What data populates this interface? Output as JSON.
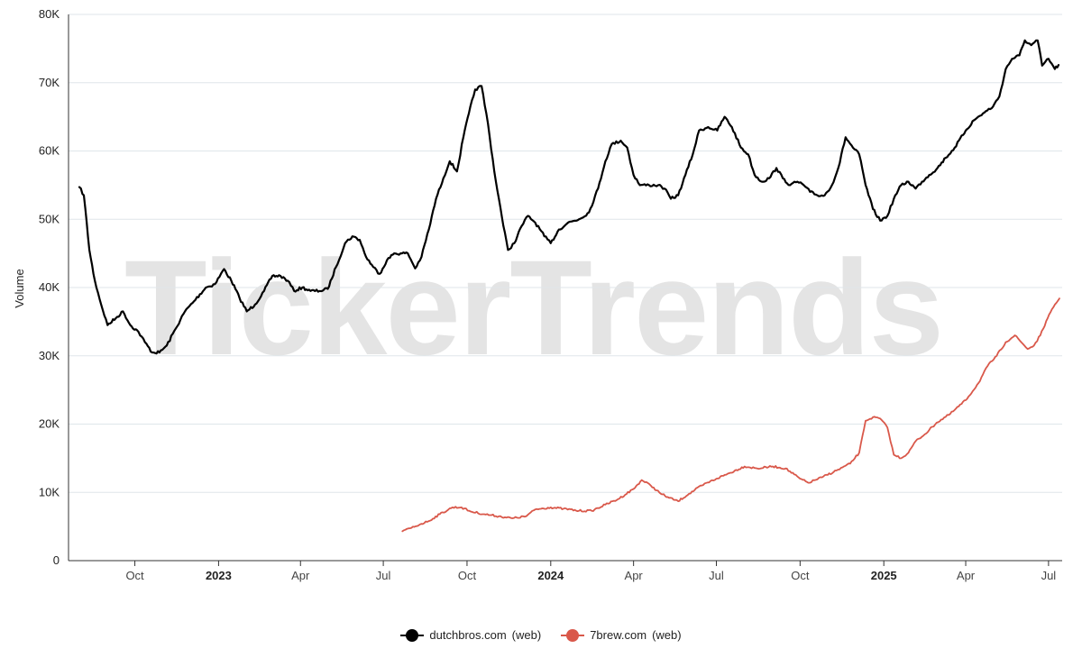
{
  "watermark": "TickerTrends",
  "chart_data": {
    "type": "line",
    "ylabel": "Volume",
    "ylim": [
      0,
      80000
    ],
    "y_ticks": [
      0,
      10000,
      20000,
      30000,
      40000,
      50000,
      60000,
      70000,
      80000
    ],
    "y_tick_labels": [
      "0",
      "10K",
      "20K",
      "30K",
      "40K",
      "50K",
      "60K",
      "70K",
      "80K"
    ],
    "x_range": [
      "2022-08-01",
      "2025-07-14"
    ],
    "x_ticks": [
      {
        "date": "2022-10-01",
        "label": "Oct",
        "bold": false
      },
      {
        "date": "2023-01-01",
        "label": "2023",
        "bold": true
      },
      {
        "date": "2023-04-01",
        "label": "Apr",
        "bold": false
      },
      {
        "date": "2023-07-01",
        "label": "Jul",
        "bold": false
      },
      {
        "date": "2023-10-01",
        "label": "Oct",
        "bold": false
      },
      {
        "date": "2024-01-01",
        "label": "2024",
        "bold": true
      },
      {
        "date": "2024-04-01",
        "label": "Apr",
        "bold": false
      },
      {
        "date": "2024-07-01",
        "label": "Jul",
        "bold": false
      },
      {
        "date": "2024-10-01",
        "label": "Oct",
        "bold": false
      },
      {
        "date": "2025-01-01",
        "label": "2025",
        "bold": true
      },
      {
        "date": "2025-04-01",
        "label": "Apr",
        "bold": false
      },
      {
        "date": "2025-07-01",
        "label": "Jul",
        "bold": false
      }
    ],
    "grid": true,
    "legend_position": "bottom-center",
    "series": [
      {
        "name": "dutchbros.com",
        "tag": "(web)",
        "color": "#000000",
        "points": [
          [
            "2022-08-01",
            54700
          ],
          [
            "2022-08-06",
            53500
          ],
          [
            "2022-08-12",
            45500
          ],
          [
            "2022-08-18",
            41000
          ],
          [
            "2022-08-25",
            37500
          ],
          [
            "2022-09-01",
            34500
          ],
          [
            "2022-09-10",
            35500
          ],
          [
            "2022-09-18",
            36500
          ],
          [
            "2022-09-26",
            34500
          ],
          [
            "2022-10-05",
            33500
          ],
          [
            "2022-10-12",
            32000
          ],
          [
            "2022-10-20",
            30500
          ],
          [
            "2022-10-28",
            30500
          ],
          [
            "2022-11-05",
            31500
          ],
          [
            "2022-11-15",
            34000
          ],
          [
            "2022-11-25",
            36500
          ],
          [
            "2022-12-05",
            38000
          ],
          [
            "2022-12-18",
            40000
          ],
          [
            "2022-12-28",
            40500
          ],
          [
            "2023-01-07",
            42700
          ],
          [
            "2023-01-15",
            41000
          ],
          [
            "2023-01-24",
            38500
          ],
          [
            "2023-02-01",
            36500
          ],
          [
            "2023-02-10",
            37500
          ],
          [
            "2023-02-20",
            39500
          ],
          [
            "2023-03-01",
            41700
          ],
          [
            "2023-03-10",
            41700
          ],
          [
            "2023-03-18",
            41000
          ],
          [
            "2023-03-25",
            39500
          ],
          [
            "2023-04-03",
            40000
          ],
          [
            "2023-04-12",
            39500
          ],
          [
            "2023-04-22",
            39500
          ],
          [
            "2023-05-01",
            39800
          ],
          [
            "2023-05-10",
            43000
          ],
          [
            "2023-05-20",
            46500
          ],
          [
            "2023-05-28",
            47500
          ],
          [
            "2023-06-05",
            47000
          ],
          [
            "2023-06-12",
            44500
          ],
          [
            "2023-06-20",
            43000
          ],
          [
            "2023-06-27",
            42000
          ],
          [
            "2023-07-05",
            44000
          ],
          [
            "2023-07-13",
            45000
          ],
          [
            "2023-07-20",
            45000
          ],
          [
            "2023-07-28",
            45000
          ],
          [
            "2023-08-05",
            42800
          ],
          [
            "2023-08-12",
            44500
          ],
          [
            "2023-08-20",
            48500
          ],
          [
            "2023-08-28",
            53000
          ],
          [
            "2023-09-05",
            56000
          ],
          [
            "2023-09-12",
            58500
          ],
          [
            "2023-09-20",
            57000
          ],
          [
            "2023-09-27",
            62000
          ],
          [
            "2023-10-03",
            65500
          ],
          [
            "2023-10-10",
            69000
          ],
          [
            "2023-10-17",
            69500
          ],
          [
            "2023-10-24",
            64000
          ],
          [
            "2023-10-31",
            57000
          ],
          [
            "2023-11-05",
            53000
          ],
          [
            "2023-11-10",
            49000
          ],
          [
            "2023-11-15",
            45500
          ],
          [
            "2023-11-22",
            46500
          ],
          [
            "2023-11-30",
            49000
          ],
          [
            "2023-12-07",
            50500
          ],
          [
            "2023-12-15",
            49500
          ],
          [
            "2023-12-25",
            47500
          ],
          [
            "2024-01-01",
            46500
          ],
          [
            "2024-01-10",
            48500
          ],
          [
            "2024-01-20",
            49500
          ],
          [
            "2024-02-01",
            50000
          ],
          [
            "2024-02-12",
            51000
          ],
          [
            "2024-02-22",
            54500
          ],
          [
            "2024-03-01",
            58500
          ],
          [
            "2024-03-08",
            61000
          ],
          [
            "2024-03-18",
            61500
          ],
          [
            "2024-03-25",
            60500
          ],
          [
            "2024-04-01",
            56500
          ],
          [
            "2024-04-08",
            55000
          ],
          [
            "2024-04-18",
            55000
          ],
          [
            "2024-04-28",
            55000
          ],
          [
            "2024-05-05",
            54500
          ],
          [
            "2024-05-12",
            53000
          ],
          [
            "2024-05-20",
            53500
          ],
          [
            "2024-05-28",
            56500
          ],
          [
            "2024-06-05",
            59500
          ],
          [
            "2024-06-12",
            63000
          ],
          [
            "2024-06-22",
            63500
          ],
          [
            "2024-07-02",
            63000
          ],
          [
            "2024-07-10",
            65000
          ],
          [
            "2024-07-18",
            63500
          ],
          [
            "2024-07-28",
            60500
          ],
          [
            "2024-08-05",
            59500
          ],
          [
            "2024-08-12",
            56500
          ],
          [
            "2024-08-20",
            55500
          ],
          [
            "2024-08-28",
            56000
          ],
          [
            "2024-09-05",
            57500
          ],
          [
            "2024-09-12",
            56000
          ],
          [
            "2024-09-20",
            55000
          ],
          [
            "2024-09-28",
            55500
          ],
          [
            "2024-10-05",
            55000
          ],
          [
            "2024-10-12",
            54000
          ],
          [
            "2024-10-20",
            53500
          ],
          [
            "2024-10-28",
            53500
          ],
          [
            "2024-11-05",
            55000
          ],
          [
            "2024-11-12",
            57500
          ],
          [
            "2024-11-20",
            62000
          ],
          [
            "2024-11-28",
            60500
          ],
          [
            "2024-12-05",
            59500
          ],
          [
            "2024-12-12",
            55000
          ],
          [
            "2024-12-20",
            51500
          ],
          [
            "2024-12-28",
            49800
          ],
          [
            "2025-01-05",
            50500
          ],
          [
            "2025-01-12",
            53000
          ],
          [
            "2025-01-20",
            55000
          ],
          [
            "2025-01-28",
            55500
          ],
          [
            "2025-02-05",
            54500
          ],
          [
            "2025-02-12",
            55500
          ],
          [
            "2025-02-20",
            56500
          ],
          [
            "2025-03-01",
            57500
          ],
          [
            "2025-03-10",
            59000
          ],
          [
            "2025-03-20",
            60500
          ],
          [
            "2025-04-01",
            63000
          ],
          [
            "2025-04-10",
            64500
          ],
          [
            "2025-04-20",
            65500
          ],
          [
            "2025-05-01",
            66500
          ],
          [
            "2025-05-08",
            68000
          ],
          [
            "2025-05-15",
            72000
          ],
          [
            "2025-05-22",
            73500
          ],
          [
            "2025-05-30",
            74000
          ],
          [
            "2025-06-05",
            76200
          ],
          [
            "2025-06-12",
            75500
          ],
          [
            "2025-06-19",
            76200
          ],
          [
            "2025-06-24",
            72500
          ],
          [
            "2025-07-01",
            73500
          ],
          [
            "2025-07-08",
            72000
          ],
          [
            "2025-07-12",
            72600
          ]
        ]
      },
      {
        "name": "7brew.com",
        "tag": "(web)",
        "color": "#d9584a",
        "points": [
          [
            "2023-07-22",
            4300
          ],
          [
            "2023-08-01",
            4800
          ],
          [
            "2023-08-10",
            5300
          ],
          [
            "2023-08-20",
            5800
          ],
          [
            "2023-09-01",
            6800
          ],
          [
            "2023-09-15",
            7800
          ],
          [
            "2023-09-25",
            7800
          ],
          [
            "2023-10-05",
            7200
          ],
          [
            "2023-10-20",
            6800
          ],
          [
            "2023-11-05",
            6500
          ],
          [
            "2023-11-20",
            6200
          ],
          [
            "2023-12-05",
            6500
          ],
          [
            "2023-12-15",
            7500
          ],
          [
            "2024-01-01",
            7800
          ],
          [
            "2024-01-15",
            7600
          ],
          [
            "2024-02-01",
            7300
          ],
          [
            "2024-02-15",
            7300
          ],
          [
            "2024-03-01",
            8200
          ],
          [
            "2024-03-15",
            9000
          ],
          [
            "2024-04-01",
            10500
          ],
          [
            "2024-04-10",
            11800
          ],
          [
            "2024-04-20",
            11000
          ],
          [
            "2024-05-01",
            9800
          ],
          [
            "2024-05-10",
            9200
          ],
          [
            "2024-05-20",
            8700
          ],
          [
            "2024-06-01",
            9800
          ],
          [
            "2024-06-15",
            11000
          ],
          [
            "2024-07-01",
            12000
          ],
          [
            "2024-07-15",
            12800
          ],
          [
            "2024-08-01",
            13800
          ],
          [
            "2024-08-15",
            13500
          ],
          [
            "2024-09-01",
            13800
          ],
          [
            "2024-09-15",
            13500
          ],
          [
            "2024-10-01",
            12000
          ],
          [
            "2024-10-10",
            11400
          ],
          [
            "2024-10-25",
            12200
          ],
          [
            "2024-11-10",
            13200
          ],
          [
            "2024-11-25",
            14200
          ],
          [
            "2024-12-05",
            15800
          ],
          [
            "2024-12-12",
            20500
          ],
          [
            "2024-12-20",
            21000
          ],
          [
            "2024-12-28",
            20800
          ],
          [
            "2025-01-05",
            19500
          ],
          [
            "2025-01-12",
            15500
          ],
          [
            "2025-01-20",
            15000
          ],
          [
            "2025-01-28",
            15800
          ],
          [
            "2025-02-05",
            17500
          ],
          [
            "2025-02-15",
            18500
          ],
          [
            "2025-02-28",
            20200
          ],
          [
            "2025-03-15",
            21500
          ],
          [
            "2025-04-01",
            23500
          ],
          [
            "2025-04-15",
            26000
          ],
          [
            "2025-04-25",
            28500
          ],
          [
            "2025-05-05",
            30000
          ],
          [
            "2025-05-15",
            32000
          ],
          [
            "2025-05-25",
            33000
          ],
          [
            "2025-06-01",
            32000
          ],
          [
            "2025-06-08",
            31000
          ],
          [
            "2025-06-15",
            31500
          ],
          [
            "2025-06-22",
            33000
          ],
          [
            "2025-06-30",
            35500
          ],
          [
            "2025-07-08",
            37500
          ],
          [
            "2025-07-13",
            38400
          ]
        ]
      }
    ]
  }
}
